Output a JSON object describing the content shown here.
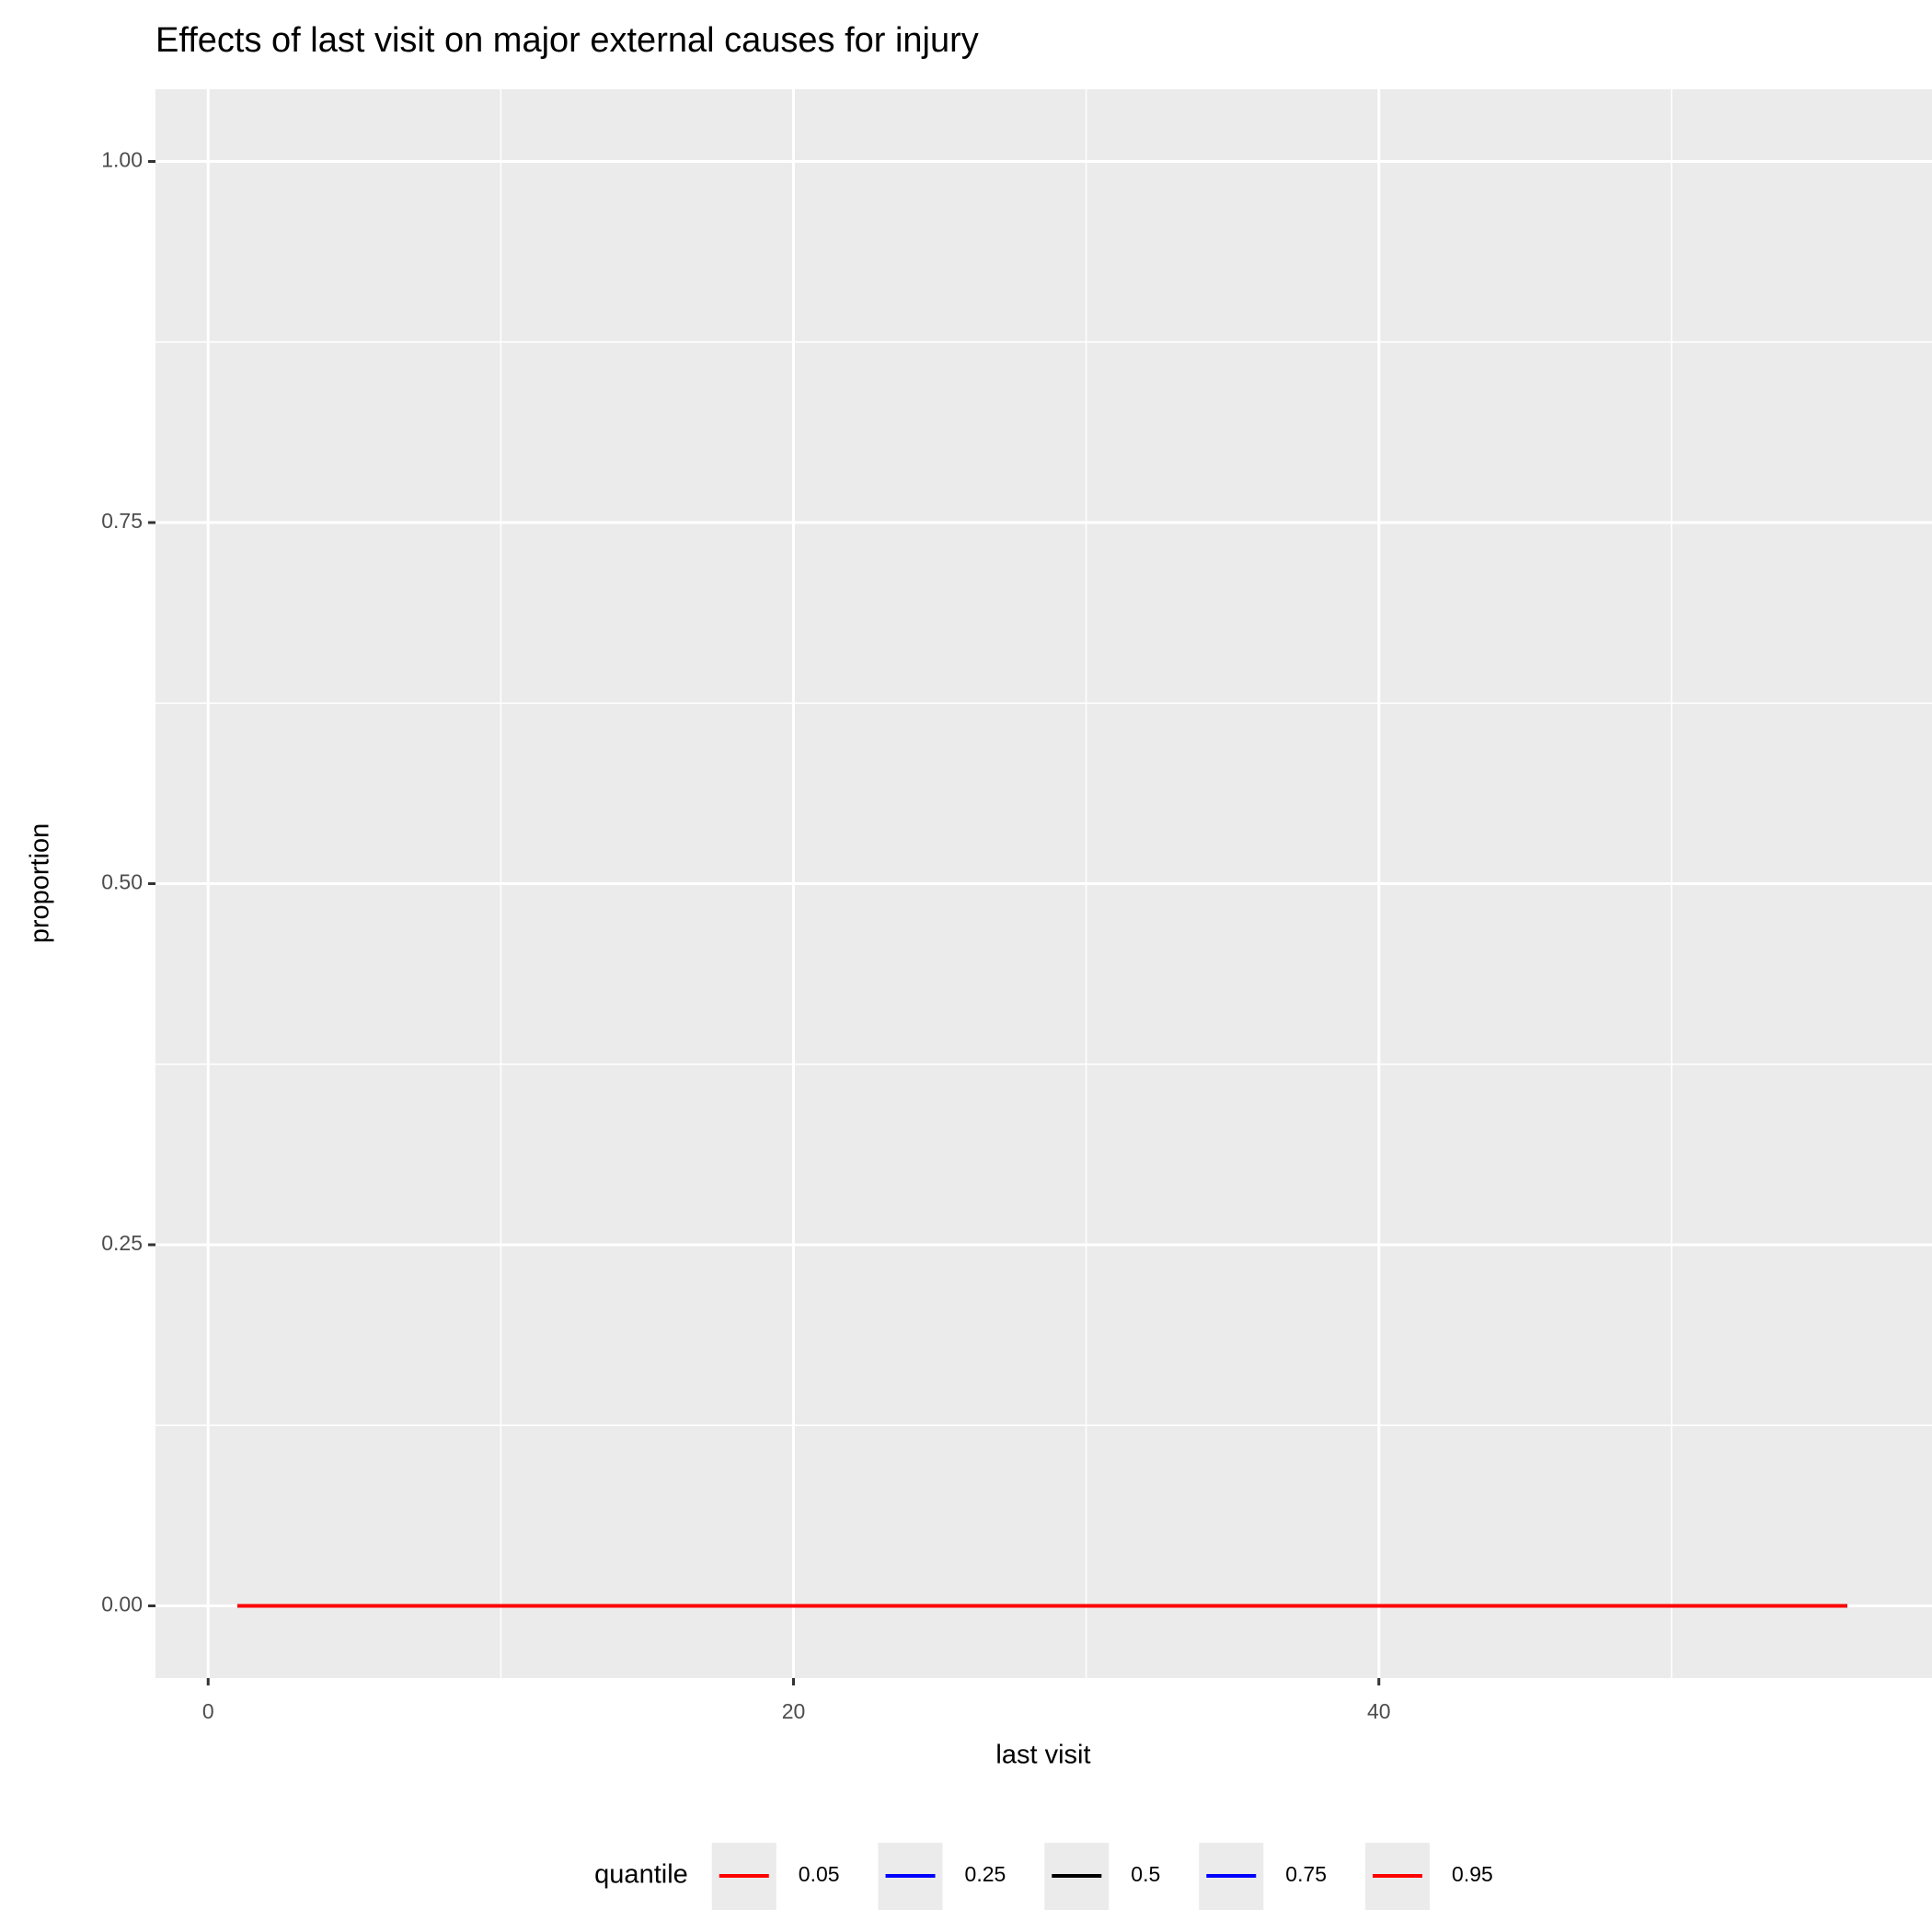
{
  "chart_data": {
    "type": "line",
    "title": "Effects of last visit on major external causes for injury",
    "x_label": "last visit",
    "y_label": "proportion",
    "x": [
      1,
      56
    ],
    "series": [
      {
        "name": "0.05",
        "color": "#ff0000",
        "values": [
          0,
          0
        ]
      },
      {
        "name": "0.25",
        "color": "#0000ff",
        "values": [
          0,
          0
        ]
      },
      {
        "name": "0.5",
        "color": "#000000",
        "values": [
          0,
          0
        ]
      },
      {
        "name": "0.75",
        "color": "#0000ff",
        "values": [
          0,
          0
        ]
      },
      {
        "name": "0.95",
        "color": "#ff0000",
        "values": [
          0,
          0
        ]
      }
    ],
    "legend_title": "quantile",
    "legend_position": "bottom",
    "xlim": [
      -1.8,
      58.9
    ],
    "xticks": [
      0,
      20,
      40
    ],
    "ylim": [
      -0.05,
      1.05
    ],
    "yticks": [
      {
        "value": 0,
        "label": "0.00"
      },
      {
        "value": 0.25,
        "label": "0.25"
      },
      {
        "value": 0.5,
        "label": "0.50"
      },
      {
        "value": 0.75,
        "label": "0.75"
      },
      {
        "value": 1,
        "label": "1.00"
      }
    ],
    "grid": true
  }
}
